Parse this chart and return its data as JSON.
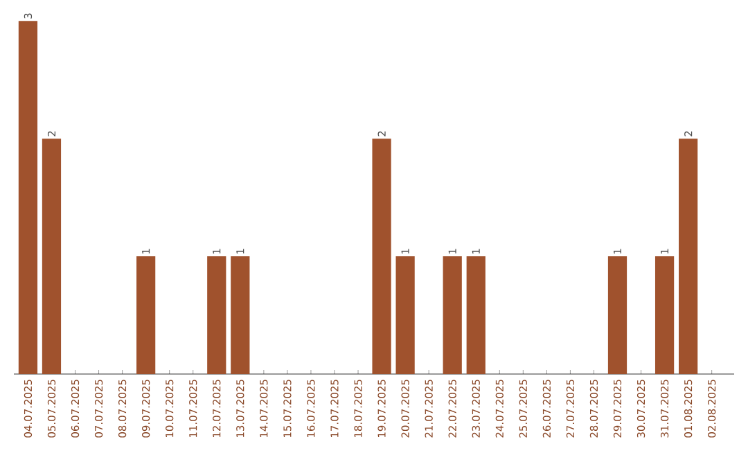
{
  "chart_data": {
    "type": "bar",
    "categories": [
      "04.07.2025",
      "05.07.2025",
      "06.07.2025",
      "07.07.2025",
      "08.07.2025",
      "09.07.2025",
      "10.07.2025",
      "11.07.2025",
      "12.07.2025",
      "13.07.2025",
      "14.07.2025",
      "15.07.2025",
      "16.07.2025",
      "17.07.2025",
      "18.07.2025",
      "19.07.2025",
      "20.07.2025",
      "21.07.2025",
      "22.07.2025",
      "23.07.2025",
      "24.07.2025",
      "25.07.2025",
      "26.07.2025",
      "27.07.2025",
      "28.07.2025",
      "29.07.2025",
      "30.07.2025",
      "31.07.2025",
      "01.08.2025",
      "02.08.2025"
    ],
    "values": [
      3,
      2,
      0,
      0,
      0,
      1,
      0,
      0,
      1,
      1,
      0,
      0,
      0,
      0,
      0,
      2,
      1,
      0,
      1,
      1,
      0,
      0,
      0,
      0,
      0,
      1,
      0,
      1,
      2,
      0
    ],
    "value_labels": [
      "3",
      "2",
      null,
      null,
      null,
      "1",
      null,
      null,
      "1",
      "1",
      null,
      null,
      null,
      null,
      null,
      "2",
      "1",
      null,
      "1",
      "1",
      null,
      null,
      null,
      null,
      null,
      "1",
      null,
      "1",
      "2",
      null
    ],
    "color": "#a0522d",
    "grid": false
  }
}
